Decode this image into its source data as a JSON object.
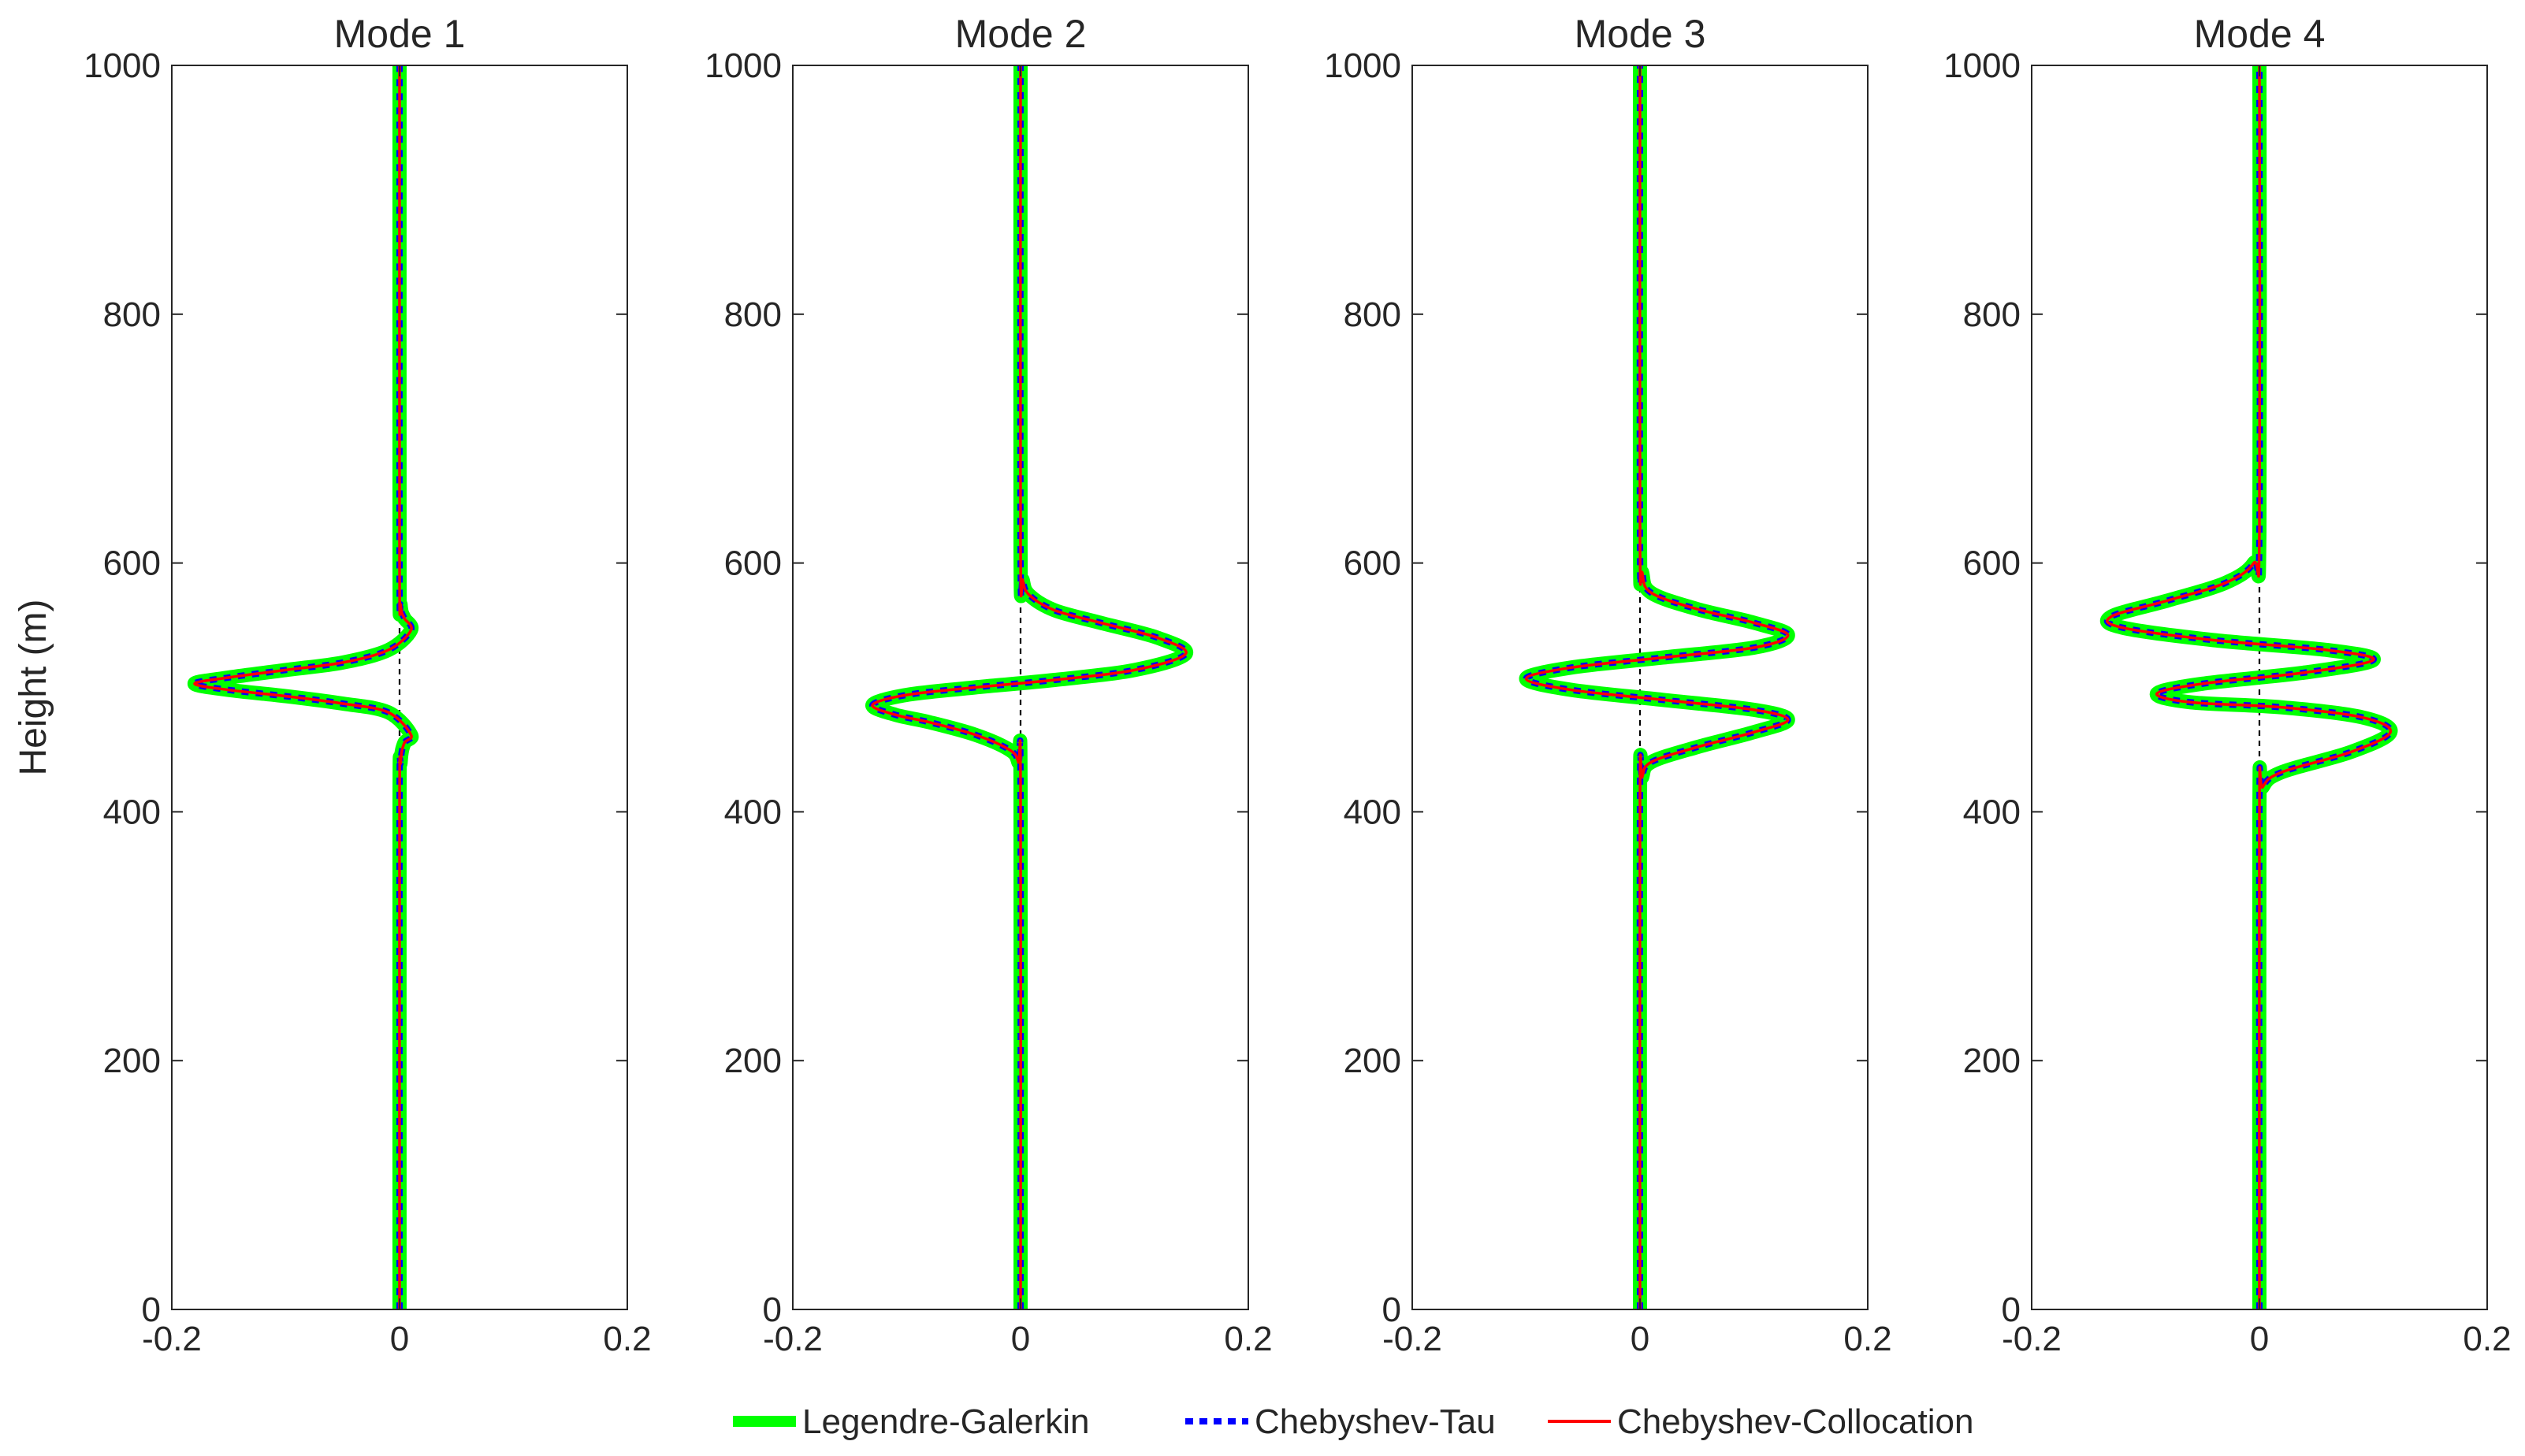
{
  "chart_data": [
    {
      "type": "line",
      "title": "Mode 1",
      "ylabel": "Height (m)",
      "xlim": [
        -0.2,
        0.2
      ],
      "ylim": [
        0,
        1000
      ],
      "xticks": [
        "-0.2",
        "0",
        "0.2"
      ],
      "yticks": [
        "0",
        "200",
        "400",
        "600",
        "800",
        "1000"
      ],
      "x": [
        0,
        0,
        0.001,
        0.004,
        0.01,
        -0.01,
        -0.05,
        -0.1,
        -0.15,
        -0.18,
        -0.15,
        -0.1,
        -0.05,
        -0.01,
        0.01,
        0.004,
        0.001,
        0,
        0
      ],
      "y": [
        0,
        400,
        440,
        455,
        462,
        480,
        487,
        493,
        498,
        503,
        508,
        514,
        520,
        530,
        546,
        556,
        566,
        600,
        1000
      ],
      "series": [
        {
          "name": "Legendre-Galerkin",
          "color": "#00ff00"
        },
        {
          "name": "Chebyshev-Tau",
          "color": "#0000ff"
        },
        {
          "name": "Chebyshev-Collocation",
          "color": "#ff0000"
        }
      ]
    },
    {
      "type": "line",
      "title": "Mode 2",
      "xlim": [
        -0.2,
        0.2
      ],
      "ylim": [
        0,
        1000
      ],
      "xticks": [
        "-0.2",
        "0",
        "0.2"
      ],
      "yticks": [
        "0",
        "200",
        "400",
        "600",
        "800",
        "1000"
      ],
      "x": [
        0,
        0,
        -0.002,
        -0.01,
        -0.04,
        -0.08,
        -0.11,
        -0.13,
        -0.1,
        -0.04,
        0.03,
        0.1,
        0.145,
        0.12,
        0.07,
        0.03,
        0.008,
        0.002,
        0,
        0
      ],
      "y": [
        0,
        420,
        440,
        450,
        462,
        472,
        478,
        486,
        494,
        500,
        506,
        514,
        527,
        540,
        552,
        562,
        574,
        586,
        610,
        1000
      ]
    },
    {
      "type": "line",
      "title": "Mode 3",
      "xlim": [
        -0.2,
        0.2
      ],
      "ylim": [
        0,
        1000
      ],
      "xticks": [
        "-0.2",
        "0",
        "0.2"
      ],
      "yticks": [
        "0",
        "200",
        "400",
        "600",
        "800",
        "1000"
      ],
      "x": [
        0,
        0,
        0.002,
        0.01,
        0.05,
        0.1,
        0.13,
        0.1,
        0.02,
        -0.06,
        -0.1,
        -0.06,
        0.02,
        0.1,
        0.13,
        0.1,
        0.05,
        0.01,
        0.002,
        0,
        0
      ],
      "y": [
        0,
        410,
        428,
        440,
        452,
        464,
        474,
        482,
        490,
        498,
        507,
        516,
        524,
        532,
        542,
        552,
        563,
        576,
        592,
        620,
        1000
      ]
    },
    {
      "type": "line",
      "title": "Mode 4",
      "xlim": [
        -0.2,
        0.2
      ],
      "ylim": [
        0,
        1000
      ],
      "xticks": [
        "-0.2",
        "0",
        "0.2"
      ],
      "yticks": [
        "0",
        "200",
        "400",
        "600",
        "800",
        "1000"
      ],
      "x": [
        0,
        0,
        0.003,
        0.02,
        0.08,
        0.115,
        0.09,
        0.02,
        -0.06,
        -0.09,
        -0.05,
        0.04,
        0.1,
        0.06,
        -0.04,
        -0.12,
        -0.13,
        -0.08,
        -0.03,
        -0.005,
        0,
        0
      ],
      "y": [
        0,
        400,
        420,
        432,
        448,
        464,
        476,
        484,
        488,
        495,
        503,
        512,
        522,
        530,
        538,
        548,
        557,
        570,
        584,
        600,
        625,
        1000
      ]
    }
  ]
}
